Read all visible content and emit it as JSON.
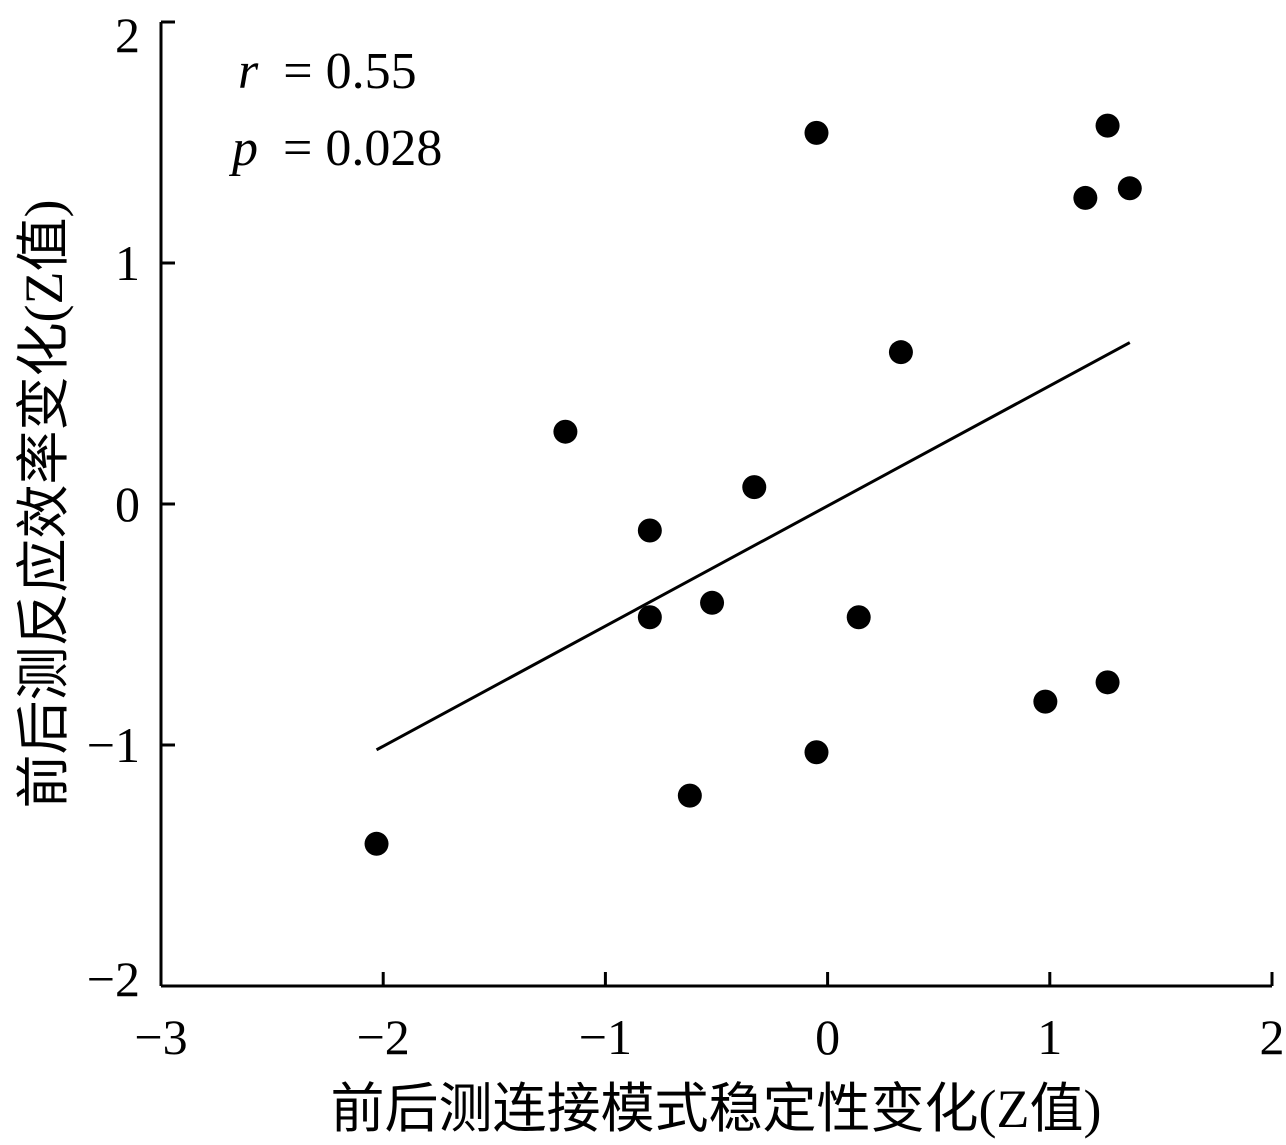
{
  "chart_data": {
    "type": "scatter",
    "xlabel": "前后测连接模式稳定性变化(Z值)",
    "ylabel": "前后测反应效率变化(Z值)",
    "xlim": [
      -3,
      2
    ],
    "ylim": [
      -2,
      2
    ],
    "x_ticks": [
      -3,
      -2,
      -1,
      0,
      1,
      2
    ],
    "y_ticks": [
      -2,
      -1,
      0,
      1,
      2
    ],
    "x_tick_labels": [
      "−3",
      "−2",
      "−1",
      "0",
      "1",
      "2"
    ],
    "y_tick_labels": [
      "−2",
      "−1",
      "0",
      "1",
      "2"
    ],
    "annotations": {
      "r_symbol": "r",
      "r_value": "= 0.55",
      "p_symbol": "p",
      "p_value": "= 0.028"
    },
    "points": [
      {
        "x": -2.03,
        "y": -1.41
      },
      {
        "x": -1.18,
        "y": 0.3
      },
      {
        "x": -0.8,
        "y": -0.11
      },
      {
        "x": -0.8,
        "y": -0.47
      },
      {
        "x": -0.62,
        "y": -1.21
      },
      {
        "x": -0.52,
        "y": -0.41
      },
      {
        "x": -0.33,
        "y": 0.07
      },
      {
        "x": -0.05,
        "y": 1.54
      },
      {
        "x": -0.05,
        "y": -1.03
      },
      {
        "x": 0.14,
        "y": -0.47
      },
      {
        "x": 0.33,
        "y": 0.63
      },
      {
        "x": 0.98,
        "y": -0.82
      },
      {
        "x": 1.16,
        "y": 1.27
      },
      {
        "x": 1.26,
        "y": 1.57
      },
      {
        "x": 1.26,
        "y": -0.74
      },
      {
        "x": 1.36,
        "y": 1.31
      }
    ],
    "fit_line": {
      "x": [
        -2.03,
        1.36
      ],
      "y": [
        -1.02,
        0.67
      ]
    },
    "grid": false,
    "legend": "none"
  }
}
